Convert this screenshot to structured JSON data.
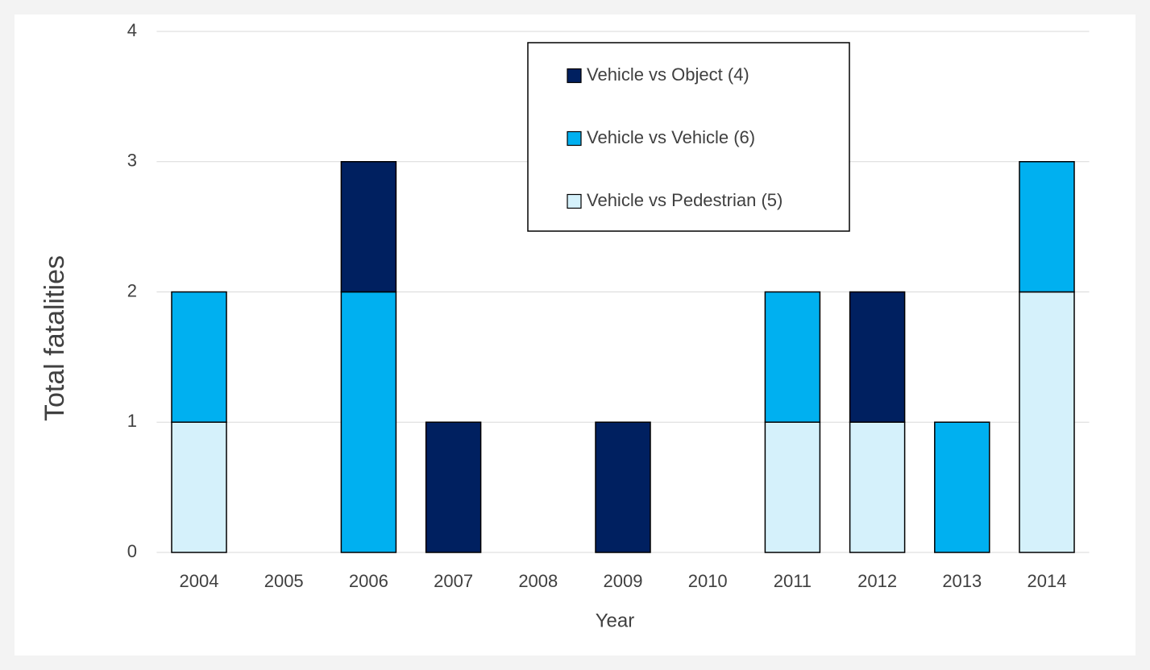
{
  "chart_data": {
    "type": "stacked_bar",
    "categories": [
      "2004",
      "2005",
      "2006",
      "2007",
      "2008",
      "2009",
      "2010",
      "2011",
      "2012",
      "2013",
      "2014"
    ],
    "series": [
      {
        "name": "Vehicle vs Pedestrian (5)",
        "color": "#d5f1fb",
        "values": [
          1,
          0,
          0,
          0,
          0,
          0,
          0,
          1,
          1,
          0,
          2
        ]
      },
      {
        "name": "Vehicle vs Vehicle (6)",
        "color": "#00b0f0",
        "values": [
          1,
          0,
          2,
          0,
          0,
          0,
          0,
          1,
          0,
          1,
          1
        ]
      },
      {
        "name": "Vehicle vs Object  (4)",
        "color": "#002060",
        "values": [
          0,
          0,
          1,
          1,
          0,
          1,
          0,
          0,
          1,
          0,
          0
        ]
      }
    ],
    "xlabel": "Year",
    "ylabel": "Total fatalities",
    "ylim": [
      0,
      4
    ],
    "yticks": [
      0,
      1,
      2,
      3,
      4
    ],
    "grid": true,
    "legend": "top"
  }
}
